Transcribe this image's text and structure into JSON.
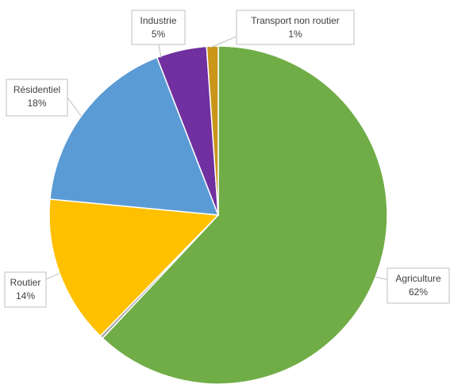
{
  "chart_data": {
    "type": "pie",
    "title": "",
    "start_angle_deg": 0,
    "direction": "clockwise",
    "slices": [
      {
        "label": "Agriculture",
        "percent_label": "62%",
        "value": 62.0,
        "color": "#70ad47"
      },
      {
        "label": "",
        "percent_label": "",
        "value": 0.3,
        "color": "#a5a5a5"
      },
      {
        "label": "Routier",
        "percent_label": "14%",
        "value": 14.2,
        "color": "#ffc000"
      },
      {
        "label": "Résidentiel",
        "percent_label": "18%",
        "value": 17.6,
        "color": "#5b9bd5"
      },
      {
        "label": "Industrie",
        "percent_label": "5%",
        "value": 4.8,
        "color": "#7030a0"
      },
      {
        "label": "Transport non routier",
        "percent_label": "1%",
        "value": 1.1,
        "color": "#c9961a"
      }
    ],
    "legend": "none",
    "data_labels": "callouts"
  }
}
